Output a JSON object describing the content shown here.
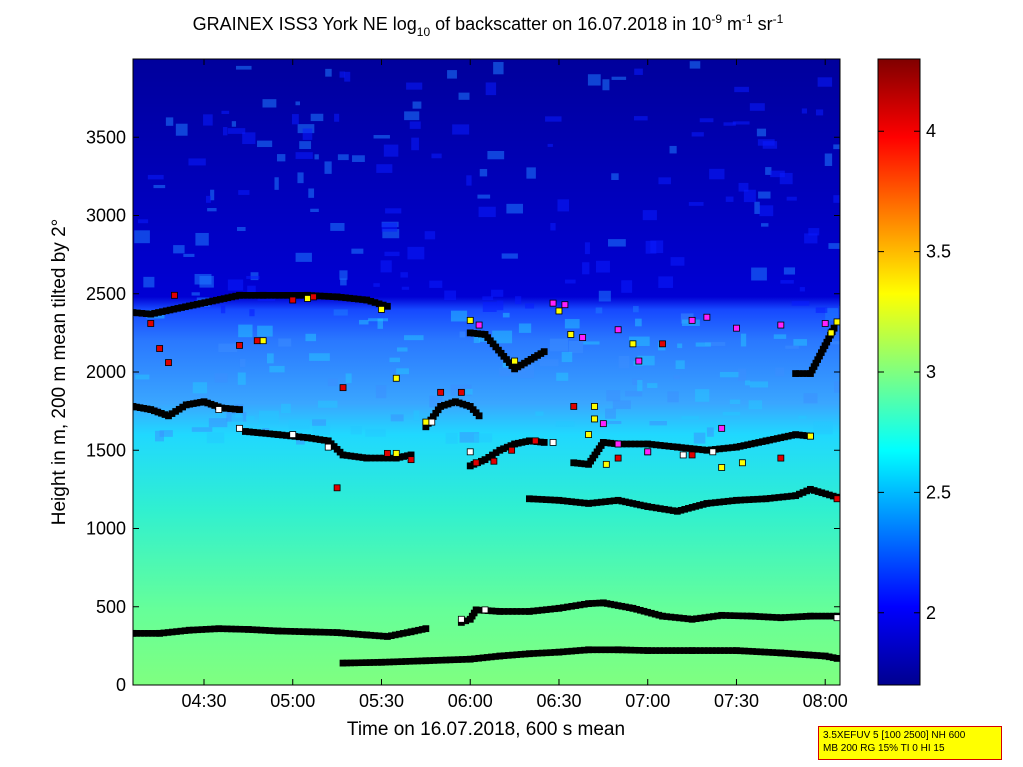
{
  "chart_data": {
    "type": "heatmap",
    "title": "GRAINEX ISS3 York NE log",
    "title_sub": "10",
    "title_rest": " of backscatter on 16.07.2018 in 10",
    "title_exp1": "-9",
    "title_unit1": " m",
    "title_exp2": "-1",
    "title_unit2": " sr",
    "title_exp3": "-1",
    "xlabel": "Time on 16.07.2018, 600 s mean",
    "ylabel": "Height in m, 200 m mean tilted by 2°",
    "x_range": [
      "04:06",
      "08:05"
    ],
    "x_ticks": [
      "04:30",
      "05:00",
      "05:30",
      "06:00",
      "06:30",
      "07:00",
      "07:30",
      "08:00"
    ],
    "ylim": [
      0,
      4000
    ],
    "y_ticks": [
      "0",
      "500",
      "1000",
      "1500",
      "2000",
      "2500",
      "3000",
      "3500"
    ],
    "colorbar": {
      "range": [
        1.7,
        4.3
      ],
      "ticks": [
        "2",
        "2.5",
        "3",
        "3.5",
        "4"
      ],
      "colormap": "jet"
    },
    "background_layers": [
      {
        "name": "low",
        "height_top_m": 1700,
        "value": 2.95
      },
      {
        "name": "middle",
        "height_top_m": 2350,
        "value": 2.55
      },
      {
        "name": "upper",
        "height_top_m": 4000,
        "value": 1.75
      }
    ],
    "marker_colors": {
      "black": "#000000",
      "white": "#ffffff",
      "red": "#e00000",
      "yellow": "#ffff00",
      "magenta": "#ff20ff"
    },
    "series": [
      {
        "marker": "black",
        "points": [
          [
            "04:06",
            330
          ],
          [
            "04:15",
            330
          ],
          [
            "04:25",
            350
          ],
          [
            "04:35",
            360
          ],
          [
            "04:45",
            355
          ],
          [
            "04:55",
            345
          ],
          [
            "05:05",
            340
          ],
          [
            "05:15",
            335
          ],
          [
            "05:25",
            320
          ],
          [
            "05:32",
            310
          ],
          [
            "05:40",
            340
          ],
          [
            "05:45",
            360
          ]
        ]
      },
      {
        "marker": "black",
        "points": [
          [
            "05:17",
            140
          ],
          [
            "05:30",
            145
          ],
          [
            "05:45",
            155
          ],
          [
            "06:00",
            165
          ],
          [
            "06:10",
            185
          ],
          [
            "06:20",
            200
          ],
          [
            "06:30",
            210
          ],
          [
            "06:40",
            225
          ],
          [
            "06:50",
            225
          ],
          [
            "07:00",
            220
          ],
          [
            "07:15",
            220
          ],
          [
            "07:30",
            220
          ],
          [
            "07:45",
            205
          ],
          [
            "08:00",
            185
          ],
          [
            "08:04",
            170
          ]
        ]
      },
      {
        "marker": "black",
        "points": [
          [
            "05:57",
            400
          ],
          [
            "06:00",
            420
          ],
          [
            "06:02",
            480
          ],
          [
            "06:10",
            470
          ],
          [
            "06:20",
            470
          ],
          [
            "06:30",
            490
          ],
          [
            "06:40",
            520
          ],
          [
            "06:45",
            525
          ],
          [
            "06:55",
            490
          ],
          [
            "07:05",
            440
          ],
          [
            "07:15",
            420
          ],
          [
            "07:25",
            445
          ],
          [
            "07:35",
            440
          ],
          [
            "07:45",
            430
          ],
          [
            "07:55",
            440
          ],
          [
            "08:04",
            440
          ]
        ]
      },
      {
        "marker": "black",
        "points": [
          [
            "06:20",
            1190
          ],
          [
            "06:30",
            1180
          ],
          [
            "06:40",
            1160
          ],
          [
            "06:50",
            1180
          ],
          [
            "07:00",
            1140
          ],
          [
            "07:10",
            1110
          ],
          [
            "07:20",
            1160
          ],
          [
            "07:30",
            1180
          ],
          [
            "07:40",
            1190
          ],
          [
            "07:50",
            1210
          ],
          [
            "07:55",
            1250
          ],
          [
            "08:04",
            1200
          ]
        ]
      },
      {
        "marker": "black",
        "points": [
          [
            "04:06",
            1780
          ],
          [
            "04:12",
            1760
          ],
          [
            "04:18",
            1720
          ],
          [
            "04:24",
            1790
          ],
          [
            "04:30",
            1810
          ],
          [
            "04:36",
            1770
          ],
          [
            "04:42",
            1760
          ]
        ]
      },
      {
        "marker": "black",
        "points": [
          [
            "04:44",
            1620
          ],
          [
            "04:55",
            1600
          ],
          [
            "05:05",
            1580
          ],
          [
            "05:12",
            1560
          ],
          [
            "05:17",
            1470
          ],
          [
            "05:25",
            1450
          ],
          [
            "05:35",
            1450
          ],
          [
            "05:40",
            1470
          ]
        ]
      },
      {
        "marker": "black",
        "points": [
          [
            "05:45",
            1650
          ],
          [
            "05:50",
            1780
          ],
          [
            "05:55",
            1810
          ],
          [
            "06:00",
            1780
          ],
          [
            "06:03",
            1720
          ]
        ]
      },
      {
        "marker": "black",
        "points": [
          [
            "06:00",
            1400
          ],
          [
            "06:05",
            1440
          ],
          [
            "06:10",
            1500
          ],
          [
            "06:15",
            1540
          ],
          [
            "06:20",
            1560
          ],
          [
            "06:25",
            1550
          ]
        ]
      },
      {
        "marker": "black",
        "points": [
          [
            "06:35",
            1420
          ],
          [
            "06:40",
            1410
          ],
          [
            "06:45",
            1550
          ],
          [
            "06:50",
            1540
          ],
          [
            "07:00",
            1540
          ],
          [
            "07:10",
            1520
          ],
          [
            "07:20",
            1500
          ],
          [
            "07:30",
            1520
          ],
          [
            "07:40",
            1560
          ],
          [
            "07:50",
            1600
          ],
          [
            "07:55",
            1590
          ]
        ]
      },
      {
        "marker": "black",
        "points": [
          [
            "04:06",
            2380
          ],
          [
            "04:12",
            2370
          ],
          [
            "04:42",
            2490
          ],
          [
            "04:50",
            2490
          ],
          [
            "05:05",
            2490
          ],
          [
            "05:15",
            2480
          ],
          [
            "05:25",
            2460
          ],
          [
            "05:32",
            2420
          ]
        ]
      },
      {
        "marker": "black",
        "points": [
          [
            "06:00",
            2250
          ],
          [
            "06:05",
            2240
          ],
          [
            "06:15",
            2020
          ],
          [
            "06:25",
            2130
          ]
        ]
      },
      {
        "marker": "black",
        "points": [
          [
            "07:50",
            1990
          ],
          [
            "07:55",
            1990
          ],
          [
            "08:03",
            2280
          ]
        ]
      },
      {
        "marker": "red",
        "points": [
          [
            "04:20",
            2490
          ],
          [
            "04:12",
            2310
          ],
          [
            "04:15",
            2150
          ],
          [
            "04:18",
            2060
          ],
          [
            "04:42",
            2170
          ],
          [
            "04:48",
            2200
          ],
          [
            "05:00",
            2460
          ],
          [
            "05:07",
            2480
          ],
          [
            "05:17",
            1900
          ],
          [
            "05:15",
            1260
          ],
          [
            "05:32",
            1480
          ],
          [
            "05:40",
            1440
          ],
          [
            "05:50",
            1870
          ],
          [
            "05:57",
            1870
          ],
          [
            "06:02",
            1420
          ],
          [
            "06:08",
            1430
          ],
          [
            "06:14",
            1500
          ],
          [
            "06:22",
            1560
          ],
          [
            "06:35",
            1780
          ],
          [
            "06:50",
            1450
          ],
          [
            "07:05",
            2180
          ],
          [
            "07:15",
            1470
          ],
          [
            "07:45",
            1450
          ],
          [
            "08:04",
            1190
          ]
        ]
      },
      {
        "marker": "white",
        "points": [
          [
            "04:35",
            1760
          ],
          [
            "04:42",
            1640
          ],
          [
            "05:00",
            1600
          ],
          [
            "05:12",
            1520
          ],
          [
            "05:47",
            1680
          ],
          [
            "06:00",
            1490
          ],
          [
            "07:00",
            1490
          ],
          [
            "07:12",
            1470
          ],
          [
            "07:22",
            1490
          ],
          [
            "06:28",
            1550
          ],
          [
            "05:57",
            420
          ],
          [
            "06:05",
            480
          ],
          [
            "08:04",
            430
          ]
        ]
      },
      {
        "marker": "yellow",
        "points": [
          [
            "04:50",
            2200
          ],
          [
            "05:05",
            2470
          ],
          [
            "05:30",
            2400
          ],
          [
            "05:35",
            1960
          ],
          [
            "05:35",
            1480
          ],
          [
            "05:45",
            1680
          ],
          [
            "06:00",
            2330
          ],
          [
            "06:15",
            2070
          ],
          [
            "06:30",
            2390
          ],
          [
            "06:34",
            2240
          ],
          [
            "06:40",
            1600
          ],
          [
            "06:42",
            1700
          ],
          [
            "06:46",
            1410
          ],
          [
            "06:55",
            2180
          ],
          [
            "06:42",
            1780
          ],
          [
            "07:25",
            1390
          ],
          [
            "07:32",
            1420
          ],
          [
            "07:55",
            1590
          ],
          [
            "08:02",
            2250
          ],
          [
            "08:04",
            2320
          ]
        ]
      },
      {
        "marker": "magenta",
        "points": [
          [
            "06:03",
            2300
          ],
          [
            "06:28",
            2440
          ],
          [
            "06:32",
            2430
          ],
          [
            "06:38",
            2220
          ],
          [
            "06:50",
            2270
          ],
          [
            "06:57",
            2070
          ],
          [
            "07:15",
            2330
          ],
          [
            "07:20",
            2350
          ],
          [
            "07:30",
            2280
          ],
          [
            "07:45",
            2300
          ],
          [
            "08:00",
            2310
          ],
          [
            "06:45",
            1670
          ],
          [
            "06:50",
            1540
          ],
          [
            "07:00",
            1490
          ],
          [
            "07:25",
            1640
          ]
        ]
      }
    ]
  },
  "info_box": {
    "line1": "3.5XEFUV 5 [100 2500] NH 600",
    "line2": "MB 200 RG 15% TI 0 HI 15",
    "bg_color": "#ffff00",
    "border_color": "#d40000"
  }
}
